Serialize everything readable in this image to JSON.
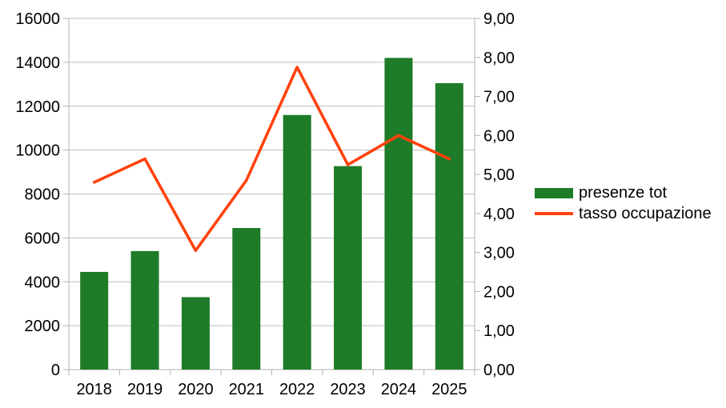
{
  "chart_data": {
    "type": "bar",
    "subtype": "combo-bar-line-dual-axis",
    "title": "",
    "categories": [
      "2018",
      "2019",
      "2020",
      "2021",
      "2022",
      "2023",
      "2024",
      "2025"
    ],
    "series": [
      {
        "name": "presenze tot",
        "type": "bar",
        "axis": "left",
        "color": "#1e7b28",
        "values": [
          4450,
          5400,
          3300,
          6450,
          11600,
          9270,
          14200,
          13050
        ]
      },
      {
        "name": "tasso occupazione",
        "type": "line",
        "axis": "right",
        "color": "#ff420e",
        "values": [
          4.8,
          5.4,
          3.05,
          4.85,
          7.75,
          5.25,
          6.0,
          5.4
        ]
      }
    ],
    "left_axis": {
      "min": 0,
      "max": 16000,
      "step": 2000,
      "tick_labels": [
        "0",
        "2000",
        "4000",
        "6000",
        "8000",
        "10000",
        "12000",
        "14000",
        "16000"
      ]
    },
    "right_axis": {
      "min": 0,
      "max": 9,
      "step": 1,
      "tick_labels": [
        "0,00",
        "1,00",
        "2,00",
        "3,00",
        "4,00",
        "5,00",
        "6,00",
        "7,00",
        "8,00",
        "9,00"
      ]
    },
    "grid": {
      "horizontal": true,
      "vertical": false,
      "color": "#bebebe"
    },
    "axis_color": "#b3b3b3",
    "text_color": "#000000",
    "background": "#ffffff",
    "legend_position": "right-middle"
  },
  "legend": {
    "items": [
      {
        "label": "presenze tot",
        "swatch": "bar",
        "color": "#1e7b28"
      },
      {
        "label": "tasso occupazione",
        "swatch": "line",
        "color": "#ff420e"
      }
    ]
  }
}
